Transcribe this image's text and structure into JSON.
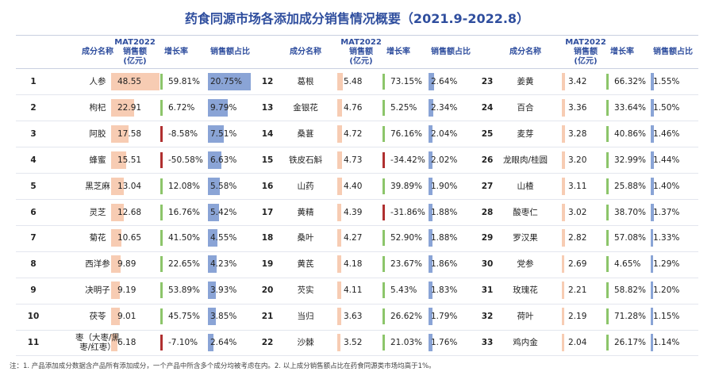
{
  "title": "药食同源市场各添加成分销售情况概要（2021.9-2022.8）",
  "header": {
    "name": "成分名称",
    "sales": [
      "MAT2022",
      "销售额",
      "(亿元)"
    ],
    "growth": "增长率",
    "share": "销售额占比"
  },
  "rows": [
    [
      1,
      "人参",
      "48.55",
      "59.81%",
      "20.75%"
    ],
    [
      2,
      "枸杞",
      "22.91",
      "6.72%",
      "9.79%"
    ],
    [
      3,
      "阿胶",
      "17.58",
      "-8.58%",
      "7.51%"
    ],
    [
      4,
      "蜂蜜",
      "15.51",
      "-50.58%",
      "6.63%"
    ],
    [
      5,
      "黑芝麻",
      "13.04",
      "12.08%",
      "5.58%"
    ],
    [
      6,
      "灵芝",
      "12.68",
      "16.76%",
      "5.42%"
    ],
    [
      7,
      "菊花",
      "10.65",
      "41.50%",
      "4.55%"
    ],
    [
      8,
      "西洋参",
      "9.89",
      "22.65%",
      "4.23%"
    ],
    [
      9,
      "决明子",
      "9.19",
      "53.89%",
      "3.93%"
    ],
    [
      10,
      "茯苓",
      "9.01",
      "45.75%",
      "3.85%"
    ],
    [
      11,
      "枣（大枣/黑枣/红枣）",
      "6.18",
      "-7.10%",
      "2.64%"
    ],
    [
      12,
      "葛根",
      "5.48",
      "73.15%",
      "2.64%"
    ],
    [
      13,
      "金银花",
      "4.76",
      "5.25%",
      "2.34%"
    ],
    [
      14,
      "桑葚",
      "4.72",
      "76.16%",
      "2.04%"
    ],
    [
      15,
      "铁皮石斛",
      "4.73",
      "-34.42%",
      "2.02%"
    ],
    [
      16,
      "山药",
      "4.40",
      "39.89%",
      "1.90%"
    ],
    [
      17,
      "黄精",
      "4.39",
      "-31.86%",
      "1.88%"
    ],
    [
      18,
      "桑叶",
      "4.27",
      "52.90%",
      "1.88%"
    ],
    [
      19,
      "黄芪",
      "4.18",
      "23.67%",
      "1.86%"
    ],
    [
      20,
      "芡实",
      "4.11",
      "5.43%",
      "1.83%"
    ],
    [
      21,
      "当归",
      "3.63",
      "26.62%",
      "1.79%"
    ],
    [
      22,
      "沙棘",
      "3.52",
      "21.03%",
      "1.76%"
    ],
    [
      23,
      "姜黄",
      "3.42",
      "66.32%",
      "1.55%"
    ],
    [
      24,
      "百合",
      "3.36",
      "33.64%",
      "1.50%"
    ],
    [
      25,
      "麦芽",
      "3.28",
      "40.86%",
      "1.46%"
    ],
    [
      26,
      "龙眼肉/桂圆",
      "3.20",
      "32.99%",
      "1.44%"
    ],
    [
      27,
      "山楂",
      "3.11",
      "25.88%",
      "1.40%"
    ],
    [
      28,
      "酸枣仁",
      "3.02",
      "38.70%",
      "1.37%"
    ],
    [
      29,
      "罗汉果",
      "2.82",
      "57.08%",
      "1.33%"
    ],
    [
      30,
      "党参",
      "2.69",
      "4.65%",
      "1.29%"
    ],
    [
      31,
      "玫瑰花",
      "2.21",
      "58.82%",
      "1.20%"
    ],
    [
      32,
      "荷叶",
      "2.19",
      "71.28%",
      "1.15%"
    ],
    [
      33,
      "鸡内金",
      "2.04",
      "26.17%",
      "1.14%"
    ]
  ],
  "footnote": "注：1. 产品添加成分数据含产品所有添加成分，一个产品中所含多个成分均被考虑在内。2. 以上成分销售额占比在药食同源类市场均高于1%。"
}
